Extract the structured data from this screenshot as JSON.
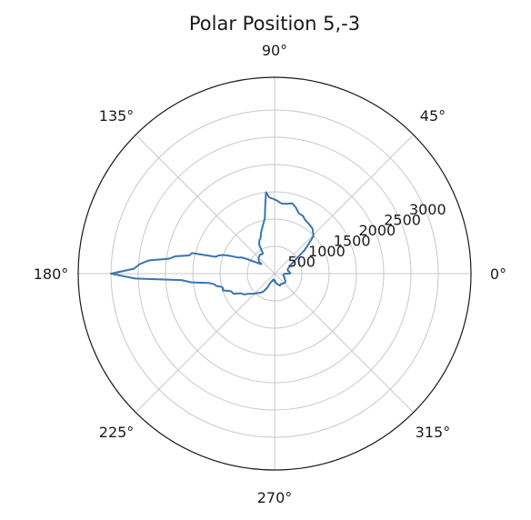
{
  "chart_data": {
    "type": "polar-line",
    "title": "Polar Position 5,-3",
    "angle_ticks": [
      {
        "deg": 0,
        "label": "0°"
      },
      {
        "deg": 45,
        "label": "45°"
      },
      {
        "deg": 90,
        "label": "90°"
      },
      {
        "deg": 135,
        "label": "135°"
      },
      {
        "deg": 180,
        "label": "180°"
      },
      {
        "deg": 225,
        "label": "225°"
      },
      {
        "deg": 270,
        "label": "270°"
      },
      {
        "deg": 315,
        "label": "315°"
      }
    ],
    "r_ticks": [
      {
        "value": 500,
        "label": "500"
      },
      {
        "value": 1000,
        "label": "1000"
      },
      {
        "value": 1500,
        "label": "1500"
      },
      {
        "value": 2000,
        "label": "2000"
      },
      {
        "value": 2500,
        "label": "2500"
      },
      {
        "value": 3000,
        "label": "3000"
      }
    ],
    "r_label_angle_deg": 22.5,
    "rlim": [
      0,
      3600
    ],
    "grid": true,
    "series": [
      {
        "color": "#3a75b0",
        "points": [
          [
            0,
            180
          ],
          [
            0,
            270
          ],
          [
            2,
            290
          ],
          [
            4,
            280
          ],
          [
            8,
            270
          ],
          [
            12,
            250
          ],
          [
            16,
            250
          ],
          [
            20,
            260
          ],
          [
            24,
            290
          ],
          [
            28,
            330
          ],
          [
            32,
            410
          ],
          [
            36,
            560
          ],
          [
            38,
            690
          ],
          [
            40,
            780
          ],
          [
            44,
            990
          ],
          [
            46,
            1020
          ],
          [
            50,
            1080
          ],
          [
            54,
            1100
          ],
          [
            58,
            1120
          ],
          [
            60,
            1130
          ],
          [
            64,
            1180
          ],
          [
            68,
            1190
          ],
          [
            72,
            1270
          ],
          [
            76,
            1330
          ],
          [
            80,
            1300
          ],
          [
            84,
            1290
          ],
          [
            86,
            1310
          ],
          [
            88,
            1340
          ],
          [
            90,
            1360
          ],
          [
            92,
            1380
          ],
          [
            94,
            1400
          ],
          [
            96,
            1500
          ],
          [
            98,
            1240
          ],
          [
            100,
            1030
          ],
          [
            104,
            900
          ],
          [
            108,
            800
          ],
          [
            112,
            690
          ],
          [
            114,
            680
          ],
          [
            116,
            640
          ],
          [
            118,
            600
          ],
          [
            120,
            430
          ],
          [
            122,
            420
          ],
          [
            124,
            430
          ],
          [
            128,
            440
          ],
          [
            132,
            420
          ],
          [
            136,
            410
          ],
          [
            140,
            380
          ],
          [
            142,
            360
          ],
          [
            144,
            300
          ],
          [
            146,
            320
          ],
          [
            148,
            380
          ],
          [
            150,
            450
          ],
          [
            152,
            560
          ],
          [
            154,
            680
          ],
          [
            156,
            720
          ],
          [
            158,
            860
          ],
          [
            160,
            1000
          ],
          [
            162,
            1080
          ],
          [
            164,
            1120
          ],
          [
            166,
            1560
          ],
          [
            168,
            1600
          ],
          [
            170,
            1840
          ],
          [
            172,
            1960
          ],
          [
            174,
            2320
          ],
          [
            176,
            2480
          ],
          [
            178,
            2580
          ],
          [
            180,
            3000
          ],
          [
            182,
            2560
          ],
          [
            184,
            1710
          ],
          [
            186,
            1530
          ],
          [
            188,
            1220
          ],
          [
            190,
            1120
          ],
          [
            192,
            1090
          ],
          [
            194,
            1000
          ],
          [
            196,
            980
          ],
          [
            198,
            1000
          ],
          [
            200,
            920
          ],
          [
            202,
            860
          ],
          [
            206,
            840
          ],
          [
            210,
            720
          ],
          [
            214,
            680
          ],
          [
            218,
            600
          ],
          [
            222,
            550
          ],
          [
            226,
            510
          ],
          [
            230,
            460
          ],
          [
            234,
            430
          ],
          [
            238,
            390
          ],
          [
            242,
            300
          ],
          [
            246,
            180
          ],
          [
            250,
            150
          ],
          [
            254,
            120
          ],
          [
            258,
            110
          ],
          [
            262,
            120
          ],
          [
            266,
            140
          ],
          [
            270,
            120
          ],
          [
            274,
            130
          ],
          [
            278,
            170
          ],
          [
            282,
            190
          ],
          [
            286,
            200
          ],
          [
            290,
            220
          ],
          [
            294,
            240
          ],
          [
            298,
            230
          ],
          [
            302,
            220
          ],
          [
            306,
            230
          ],
          [
            310,
            240
          ],
          [
            314,
            240
          ],
          [
            318,
            250
          ],
          [
            322,
            250
          ],
          [
            326,
            240
          ],
          [
            330,
            220
          ],
          [
            334,
            200
          ],
          [
            338,
            200
          ],
          [
            342,
            180
          ],
          [
            346,
            170
          ],
          [
            350,
            160
          ],
          [
            354,
            170
          ],
          [
            358,
            170
          ],
          [
            360,
            180
          ]
        ]
      }
    ]
  }
}
